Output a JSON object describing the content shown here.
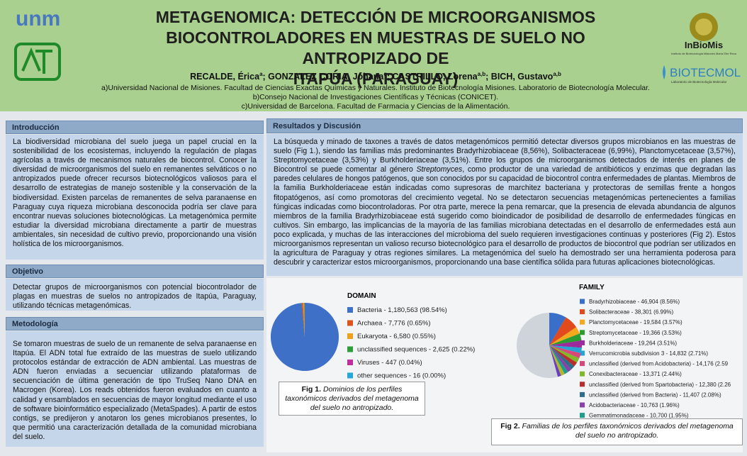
{
  "header": {
    "title_lines": [
      "METAGENOMICA: DETECCIÓN DE MICROORGANISMOS",
      "BIOCONTROLADORES EN MUESTRAS DE SUELO NO ANTROPIZADO DE",
      "ITAPÚA (PARAGUAY)"
    ],
    "authors": [
      {
        "name": "RECALDE, Érica",
        "sup": "a"
      },
      {
        "name": "; GONZALEZ CORIA, Johana",
        "sup": "c"
      },
      {
        "name": "; CASTRILLO, Lorena",
        "sup": "a,b"
      },
      {
        "name": "; BICH, Gustavo",
        "sup": "a,b"
      }
    ],
    "affiliations": [
      "a)Universidad Nacional de Misiones. Facultad de Ciencias Exactas Químicas y Naturales. Instituto de Biotecnología Misiones. Laboratorio de Biotecnología Molecular.",
      "b)Consejo Nacional de Investigaciones Científicas y Técnicas (CONICET).",
      "c)Universidad de Barcelona. Facultad de Farmacia y Ciencias de la Alimentación."
    ],
    "logos": {
      "unam": "unm",
      "inbiomis": "InBioMis",
      "inbiomis_sub": "Instituto de Biotecnología Misiones María Ebe Reca",
      "biotecmol": "BIOTECMOL",
      "biotecmol_sub": "Laboratorio de Biotecnología Molecular"
    }
  },
  "sections": {
    "intro": {
      "title": "Introducción",
      "body": "La biodiversidad microbiana del suelo juega un papel crucial en la sostenibilidad de los ecosistemas, incluyendo la regulación de plagas agrícolas a través de mecanismos naturales de biocontrol. Conocer la diversidad de microorganismos del suelo en remanentes selváticos o no antropizados puede ofrecer recursos biotecnológicos valiosos para el desarrollo de estrategias de manejo sostenible y la conservación de la biodiversidad. Existen parcelas de remanentes de selva paranaense en Paraguay cuya riqueza microbiana desconocida podría ser clave para encontrar nuevas soluciones biotecnológicas. La metagenómica permite estudiar la diversidad microbiana directamente a partir de muestras ambientales, sin necesidad de cultivo previo, proporcionando una visión holística de los microorganismos."
    },
    "objetivo": {
      "title": "Objetivo",
      "body": "Detectar grupos de microorganismos con potencial biocontrolador de plagas en muestras de suelos no antropizados de Itapúa, Paraguay, utilizando técnicas metagenómicas."
    },
    "metodologia": {
      "title": "Metodología",
      "body": "Se tomaron muestras de suelo de un remanente de selva paranaense en Itapúa. El ADN total fue extraído de las muestras de suelo utilizando protocolos estándar de extracción de ADN ambiental. Las muestras de ADN fueron enviadas a secuenciar utilizando plataformas de secuenciación de última generación de tipo TruSeq Nano DNA en Macrogen (Korea). Los reads obtenidos fueron evaluados en cuanto a calidad y ensamblados en secuencias de mayor longitud mediante el uso de software bioinformático especializado (MetaSpades). A partir de estos contigs, se predijeron y anotaron los genes microbianos presentes, lo que permitió una caracterización detallada de la comunidad microbiana del suelo."
    },
    "resultados": {
      "title": "Resultados y Discusión",
      "body": [
        "La búsqueda y minado de taxones a través de datos metagenómicos permitió detectar diversos grupos microbianos en las muestras de suelo (Fig 1.), siendo las familias más predominantes Bradyrhizobiaceae (8,56%), Solibacteraceae (6,99%), Planctomycetaceae (3,57%), Streptomycetaceae (3,53%) y Burkholderiaceae (3,51%).  Entre los grupos de microorganismos detectados de interés en planes de Biocontrol se puede comentar al género ",
        "Streptomyces",
        ", como productor de una variedad de antibióticos y enzimas que degradan las paredes celulares de hongos patógenos, que son conocidos por su capacidad de biocontrol contra enfermedades de plantas. Miembros de la familia Burkholderiaceae están indicadas como supresoras de marchitez bacteriana y protectoras de semillas frente a hongos fitopatógenos, así como promotoras del crecimiento vegetal. No se detectaron secuencias metagenómicas pertenecientes a familias fúngicas indicadas como biocontroladoras. Por otra parte, merece la pena remarcar, que la presencia de elevada abundancia de algunos miembros de la familia Bradyrhizobiaceae está sugerido como bioindicador de posibilidad de desarrollo de enfermedades fúngicas en cultivos. Sin embargo, las implicancias de la mayoría de las familias microbiana detectadas en el desarrollo de enfermedades está aun poco explicada, y muchas de las interacciones del microbioma del suelo requieren investigaciones continuas y posteriores (Fig 2). Estos microorganismos representan un valioso recurso biotecnológico para el desarrollo de productos de biocontrol que podrían ser utilizados en la agricultura de Paraguay y otras regiones similares. La metagenómica del suelo ha demostrado ser una herramienta poderosa para descubrir y caracterizar estos microorganismos, proporcionando una base científica sólida para futuras aplicaciones biotecnológicas."
      ]
    }
  },
  "figures": [
    {
      "type": "pie",
      "title": "DOMAIN",
      "caption_label": "Fig 1.",
      "caption": "Dominios de los perfiles taxonómicos derivados del metagenoma del suelo no antropizado.",
      "legend": [
        "Bacteria - 1,180,563 (98.54%)",
        "Archaea - 7,776 (0.65%)",
        "Eukaryota - 6,580 (0.55%)",
        "unclassified sequences - 2,625 (0.22%)",
        "Viruses - 447 (0.04%)",
        "other sequences - 16 (0.00%)"
      ],
      "values": [
        1180563,
        7776,
        6580,
        2625,
        447,
        16
      ],
      "shares": [
        98.54,
        0.65,
        0.55,
        0.22,
        0.04,
        0.0
      ],
      "colors": [
        "#3e70c8",
        "#d9541e",
        "#f0a020",
        "#2e9e3a",
        "#c02fa0",
        "#29a6d8"
      ]
    },
    {
      "type": "pie",
      "title": "FAMILY",
      "caption_label": "Fig 2.",
      "caption": "Familias de los perfiles taxonómicos derivados del metagenoma del suelo no antropizado.",
      "legend": [
        "Bradyrhizobiaceae - 46,904 (8.56%)",
        "Solibacteraceae - 38,301 (6.99%)",
        "Planctomycetaceae - 19,584 (3.57%)",
        "Streptomycetaceae - 19,366 (3.53%)",
        "Burkholderiaceae - 19,264 (3.51%)",
        "Verrucomicrobia subdivision 3 - 14,832 (2.71%)",
        "unclassified (derived from Acidobacteria) - 14,176 (2.59",
        "Conexibacteraceae - 13,371 (2.44%)",
        "unclassified (derived from Spartobacteria) - 12,380 (2.26",
        "unclassified (derived from Bacteria) - 11,407 (2.08%)",
        "Acidobacteriaceae - 10,763 (1.96%)",
        "Gemmatimonadaceae - 10,700 (1.95%)",
        "Mycobacteriaceae - 10,686 (1.95%)",
        "Myxococcaceae - 9,099 (1.66%)"
      ],
      "values": [
        46904,
        38301,
        19584,
        19366,
        19264,
        14832,
        14176,
        13371,
        12380,
        11407,
        10763,
        10700,
        10686,
        9099
      ],
      "shares": [
        8.56,
        6.99,
        3.57,
        3.53,
        3.51,
        2.71,
        2.59,
        2.44,
        2.26,
        2.08,
        1.96,
        1.95,
        1.95,
        1.66
      ],
      "colors": [
        "#3a6fc9",
        "#e04a1d",
        "#f4a81c",
        "#2b9c32",
        "#9c2a9c",
        "#25a3d6",
        "#d6487a",
        "#80b82a",
        "#b82e2e",
        "#2f6e8a",
        "#8b3fa8",
        "#1e9c8c",
        "#b6b62a",
        "#6a3fbf"
      ]
    }
  ]
}
